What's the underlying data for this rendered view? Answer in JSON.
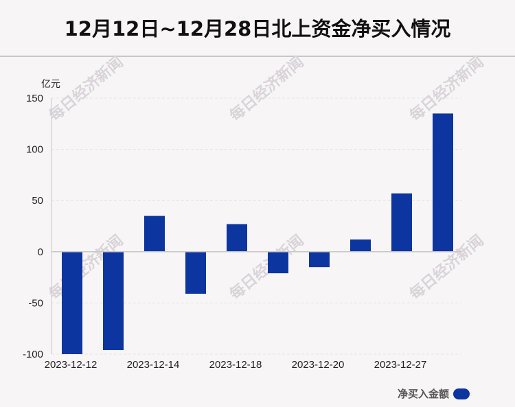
{
  "title": "12月12日~12月28日北上资金净买入情况",
  "watermark": "每日经济新闻",
  "colors": {
    "bar": "#0c35a0",
    "axis": "#c9c6c8",
    "grid": "#e6e2e4"
  },
  "chart_data": {
    "type": "bar",
    "unit": "亿元",
    "x_tick_labels": [
      "2023-12-12",
      "2023-12-14",
      "2023-12-18",
      "2023-12-20",
      "2023-12-27"
    ],
    "series": [
      {
        "name": "净买入金额",
        "values": [
          -100,
          -96,
          35,
          -41,
          27,
          -21,
          -15,
          12,
          57,
          135
        ]
      }
    ],
    "ylim": [
      -100,
      150
    ],
    "yticks": [
      -100,
      -50,
      0,
      50,
      100,
      150
    ],
    "grid": true,
    "legend": "bottom-right"
  }
}
